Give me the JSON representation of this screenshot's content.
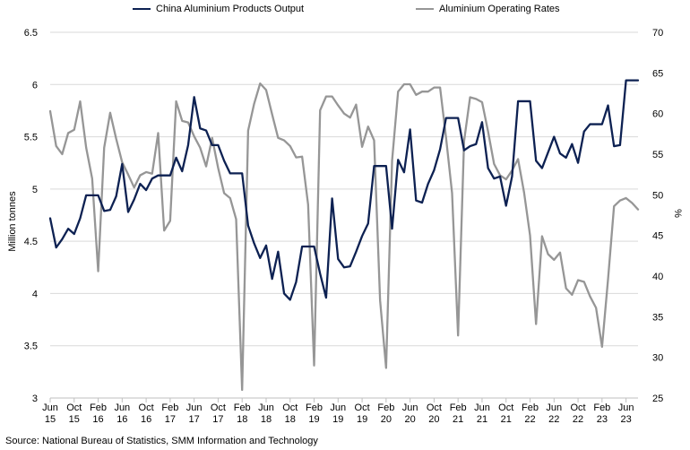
{
  "chart_data": {
    "type": "line",
    "title": "",
    "legend_position": "top",
    "grid": "horizontal",
    "x_tick_labels": [
      [
        "Jun",
        "15"
      ],
      [
        "Oct",
        "15"
      ],
      [
        "Feb",
        "16"
      ],
      [
        "Jun",
        "16"
      ],
      [
        "Oct",
        "16"
      ],
      [
        "Feb",
        "17"
      ],
      [
        "Jun",
        "17"
      ],
      [
        "Oct",
        "17"
      ],
      [
        "Feb",
        "18"
      ],
      [
        "Jun",
        "18"
      ],
      [
        "Oct",
        "18"
      ],
      [
        "Feb",
        "19"
      ],
      [
        "Jun",
        "19"
      ],
      [
        "Oct",
        "19"
      ],
      [
        "Feb",
        "20"
      ],
      [
        "Jun",
        "20"
      ],
      [
        "Oct",
        "20"
      ],
      [
        "Feb",
        "21"
      ],
      [
        "Jun",
        "21"
      ],
      [
        "Oct",
        "21"
      ],
      [
        "Feb",
        "22"
      ],
      [
        "Jun",
        "22"
      ],
      [
        "Oct",
        "22"
      ],
      [
        "Feb",
        "23"
      ],
      [
        "Jun",
        "23"
      ]
    ],
    "x_start_month": "2015-06",
    "left_axis": {
      "label": "Million tonnes",
      "ylim": [
        3,
        6.5
      ],
      "ticks": [
        "3",
        "3.5",
        "4",
        "4.5",
        "5",
        "5.5",
        "6",
        "6.5"
      ]
    },
    "right_axis": {
      "label": "%",
      "ylim": [
        25,
        70
      ],
      "ticks": [
        "25",
        "30",
        "35",
        "40",
        "45",
        "50",
        "55",
        "60",
        "65",
        "70"
      ]
    },
    "series": [
      {
        "name": "China Aluminium Products Output",
        "axis": "left",
        "color": "#0d2152",
        "values": [
          4.72,
          4.44,
          4.52,
          4.62,
          4.57,
          4.72,
          4.94,
          4.94,
          4.94,
          4.79,
          4.8,
          4.93,
          5.24,
          4.78,
          4.9,
          5.05,
          4.99,
          5.1,
          5.13,
          5.13,
          5.13,
          5.3,
          5.17,
          5.42,
          5.88,
          5.58,
          5.56,
          5.42,
          5.42,
          5.27,
          5.15,
          5.15,
          5.15,
          4.65,
          4.48,
          4.34,
          4.46,
          4.14,
          4.4,
          4.0,
          3.94,
          4.11,
          4.45,
          4.45,
          4.45,
          4.19,
          3.96,
          4.91,
          4.33,
          4.25,
          4.26,
          4.4,
          4.55,
          4.67,
          5.22,
          5.22,
          5.22,
          4.62,
          5.28,
          5.16,
          5.57,
          4.89,
          4.87,
          5.05,
          5.18,
          5.38,
          5.68,
          5.68,
          5.68,
          5.37,
          5.41,
          5.43,
          5.64,
          5.2,
          5.1,
          5.12,
          4.84,
          5.12,
          5.84,
          5.84,
          5.84,
          5.27,
          5.2,
          5.35,
          5.5,
          5.34,
          5.3,
          5.43,
          5.25,
          5.55,
          5.62,
          5.62,
          5.62,
          5.8,
          5.41,
          5.42,
          6.04,
          6.04,
          6.04
        ]
      },
      {
        "name": "Aluminium Operating Rates",
        "axis": "right",
        "color": "#969696",
        "values": [
          60.3,
          56.0,
          55.0,
          57.6,
          58.0,
          61.5,
          55.8,
          52.0,
          40.6,
          55.8,
          60.1,
          56.9,
          54.0,
          52.5,
          50.9,
          52.4,
          52.8,
          52.6,
          57.6,
          45.6,
          46.8,
          61.5,
          59.1,
          58.9,
          57.2,
          55.8,
          53.5,
          57.0,
          53.3,
          50.2,
          49.6,
          47.0,
          26.0,
          57.9,
          61.2,
          63.7,
          62.9,
          59.9,
          57.0,
          56.7,
          56.0,
          54.6,
          54.7,
          48.8,
          29.0,
          60.4,
          62.1,
          62.1,
          61.0,
          60.0,
          59.5,
          61.1,
          55.9,
          58.4,
          56.7,
          37.0,
          28.7,
          54.2,
          62.7,
          63.6,
          63.6,
          62.3,
          62.7,
          62.7,
          63.2,
          63.2,
          57.0,
          50.2,
          32.7,
          56.6,
          62.0,
          61.8,
          61.4,
          57.8,
          53.8,
          52.4,
          51.9,
          53.0,
          54.4,
          50.3,
          45.0,
          34.1,
          44.9,
          42.7,
          42.0,
          42.9,
          38.5,
          37.7,
          39.5,
          39.3,
          37.5,
          36.1,
          31.3,
          39.6,
          48.6,
          49.3,
          49.6,
          49.0,
          48.2
        ]
      }
    ],
    "source_text": "Source: National Bureau of Statistics, SMM Information and Technology"
  }
}
